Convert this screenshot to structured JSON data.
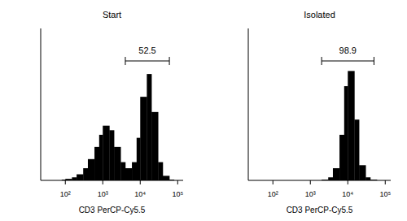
{
  "chart_data": [
    {
      "type": "histogram",
      "title": "Start",
      "x_label": "CD3 PerCP-Cy5.5",
      "color": "#000000",
      "log": "x",
      "tick_labels": "x",
      "bins": [
        20,
        30,
        40,
        60,
        80,
        100,
        150,
        200,
        300,
        400,
        600,
        800,
        1000,
        1500,
        2000,
        3000,
        4000,
        6000,
        8000,
        10000,
        15000,
        20000,
        30000,
        40000,
        60000,
        80000,
        100000,
        140000
      ],
      "values": [
        0,
        0,
        0,
        0,
        0.5,
        1,
        2,
        4,
        8,
        14,
        22,
        30,
        36,
        33,
        22,
        12,
        8,
        12,
        28,
        55,
        70,
        45,
        12,
        3,
        0.5,
        0,
        0
      ],
      "xlim": [
        22,
        140000
      ],
      "ylim": [
        0,
        100
      ],
      "xticks": [
        {
          "value": 100,
          "label": "10²"
        },
        {
          "value": 1000,
          "label": "10³"
        },
        {
          "value": 10000,
          "label": "10⁴"
        },
        {
          "value": 100000,
          "label": "10⁵"
        }
      ],
      "gate": {
        "x0": 4000,
        "x1": 60000,
        "value": 52.5
      }
    },
    {
      "type": "histogram",
      "title": "Isolated",
      "x_label": "CD3 PerCP-Cy5.5",
      "color": "#000000",
      "log": "x",
      "tick_labels": "x",
      "bins": [
        20,
        30,
        40,
        60,
        80,
        100,
        150,
        200,
        300,
        400,
        600,
        800,
        1000,
        1500,
        2000,
        3000,
        4000,
        6000,
        8000,
        10000,
        15000,
        20000,
        30000,
        40000,
        60000,
        80000,
        100000,
        140000
      ],
      "values": [
        0,
        0,
        0,
        0,
        0,
        0,
        0,
        0,
        0,
        0,
        0,
        0,
        0,
        0,
        0.5,
        2,
        8,
        30,
        62,
        72,
        40,
        10,
        2,
        0.5,
        0,
        0,
        0
      ],
      "xlim": [
        22,
        140000
      ],
      "ylim": [
        0,
        100
      ],
      "xticks": [
        {
          "value": 100,
          "label": "10²"
        },
        {
          "value": 1000,
          "label": "10³"
        },
        {
          "value": 10000,
          "label": "10⁴"
        },
        {
          "value": 100000,
          "label": "10⁵"
        }
      ],
      "gate": {
        "x0": 2000,
        "x1": 50000,
        "value": 98.9
      }
    }
  ]
}
